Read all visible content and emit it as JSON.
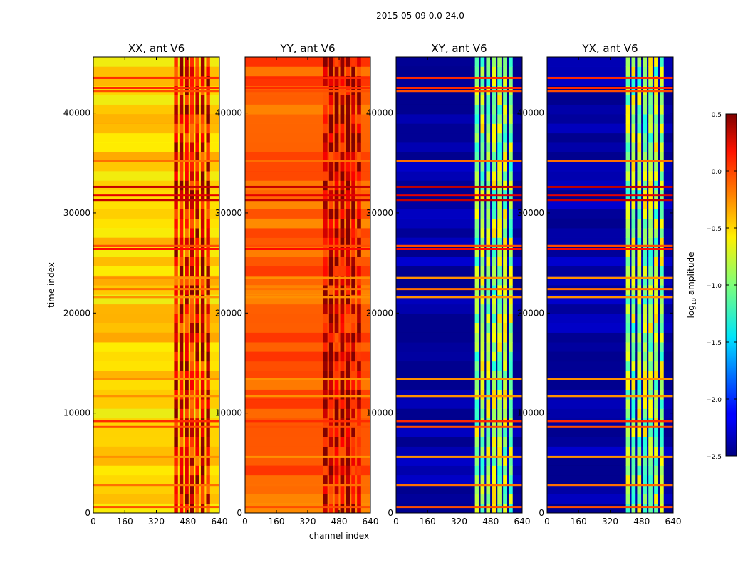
{
  "chart_data": {
    "type": "heatmap",
    "title": "2015-05-09 0.0-24.0",
    "xlabel": "channel index",
    "ylabel": "time index",
    "xlim": [
      0,
      640
    ],
    "ylim": [
      0,
      45600
    ],
    "x_ticks": [
      0,
      160,
      320,
      480,
      640
    ],
    "y_ticks": [
      0,
      10000,
      20000,
      30000,
      40000
    ],
    "colorbar": {
      "label": "log",
      "label_sub": "10",
      "label_suffix": " amplitude",
      "range": [
        -2.5,
        0.5
      ],
      "ticks": [
        0.5,
        0.0,
        -0.5,
        -1.0,
        -1.5,
        -2.0,
        -2.5
      ],
      "colormap": "jet",
      "tick_labels": [
        "0.5",
        "0.0",
        "−0.5",
        "−1.0",
        "−1.5",
        "−2.0",
        "−2.5"
      ]
    },
    "panels": [
      {
        "name": "XX",
        "title": "XX, ant V6",
        "base_level": -0.5,
        "band_channels": [
          410,
          600
        ],
        "band_level": 0.15
      },
      {
        "name": "YY",
        "title": "YY, ant V6",
        "base_level": -0.15,
        "band_channels": [
          400,
          600
        ],
        "band_level": 0.25
      },
      {
        "name": "XY",
        "title": "XY, ant V6",
        "base_level": -2.4,
        "band_channels": [
          400,
          600
        ],
        "band_level": -0.9
      },
      {
        "name": "YX",
        "title": "YX, ant V6",
        "base_level": -2.4,
        "band_channels": [
          400,
          600
        ],
        "band_level": -0.9
      }
    ],
    "flagged_rows": [
      {
        "t": 43500,
        "level": 0.0
      },
      {
        "t": 42500,
        "level": 0.0
      },
      {
        "t": 42200,
        "level": -0.1
      },
      {
        "t": 35200,
        "level": -0.2
      },
      {
        "t": 32600,
        "level": 0.3
      },
      {
        "t": 31800,
        "level": 0.2
      },
      {
        "t": 31300,
        "level": 0.3
      },
      {
        "t": 26700,
        "level": -0.1
      },
      {
        "t": 26400,
        "level": 0.1
      },
      {
        "t": 23500,
        "level": -0.3
      },
      {
        "t": 22400,
        "level": -0.2
      },
      {
        "t": 21600,
        "level": -0.3
      },
      {
        "t": 13400,
        "level": -0.3
      },
      {
        "t": 11700,
        "level": -0.3
      },
      {
        "t": 9200,
        "level": 0.0
      },
      {
        "t": 8600,
        "level": -0.1
      },
      {
        "t": 5600,
        "level": -0.3
      },
      {
        "t": 2800,
        "level": -0.2
      },
      {
        "t": 600,
        "level": -0.1
      }
    ]
  }
}
